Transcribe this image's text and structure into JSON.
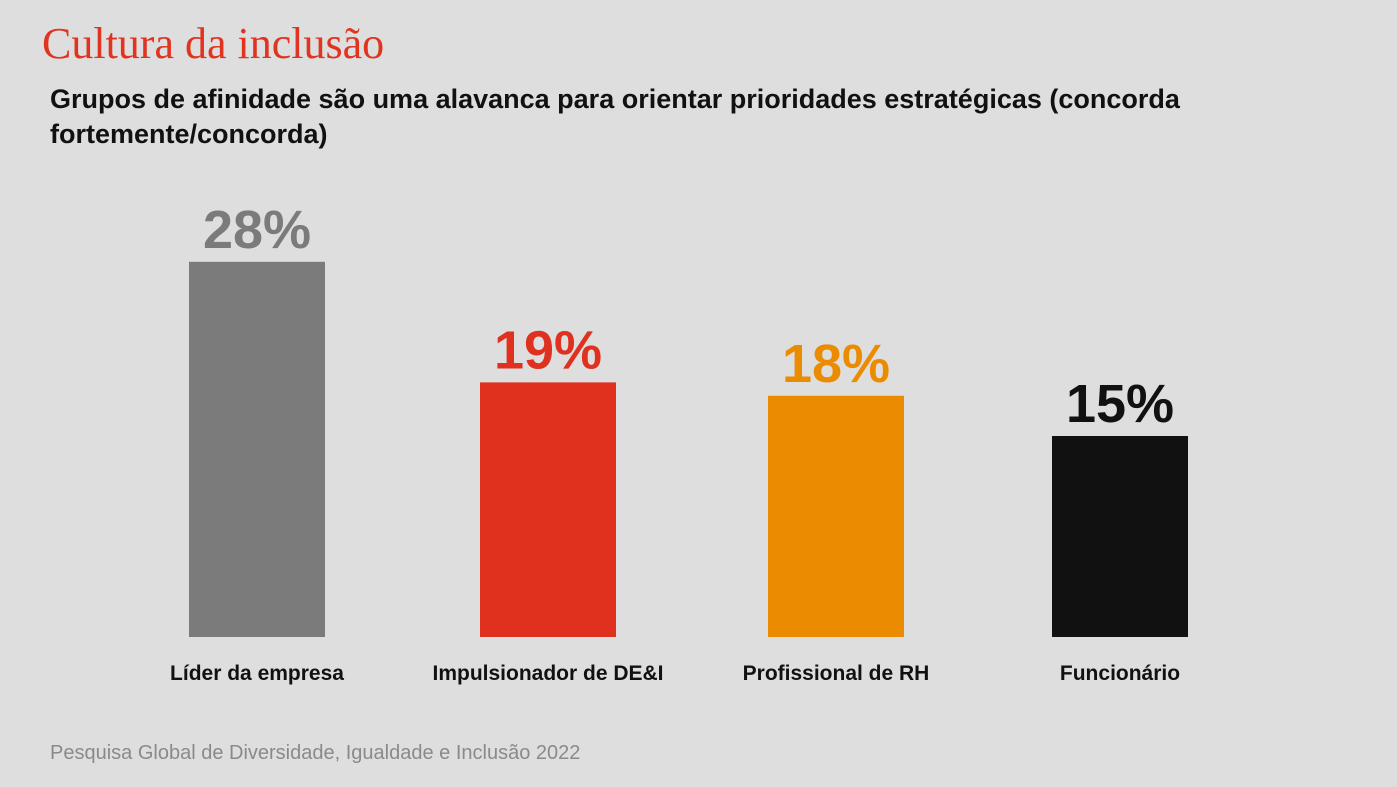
{
  "slide": {
    "title": "Cultura da inclusão",
    "source": "Pesquisa Global de Diversidade, Igualdade e Inclusão 2022"
  },
  "chart_data": {
    "type": "bar",
    "title": "Grupos de afinidade são uma alavanca para orientar prioridades estratégicas (concorda fortemente/concorda)",
    "categories": [
      "Líder da empresa",
      "Impulsionador de DE&I",
      "Profissional de RH",
      "Funcionário"
    ],
    "values": [
      28,
      19,
      18,
      15
    ],
    "value_labels": [
      "28%",
      "19%",
      "18%",
      "15%"
    ],
    "colors": [
      "#7b7b7b",
      "#e0301e",
      "#eb8c00",
      "#111111"
    ],
    "unit": "%",
    "grid": false,
    "legend": "none"
  }
}
